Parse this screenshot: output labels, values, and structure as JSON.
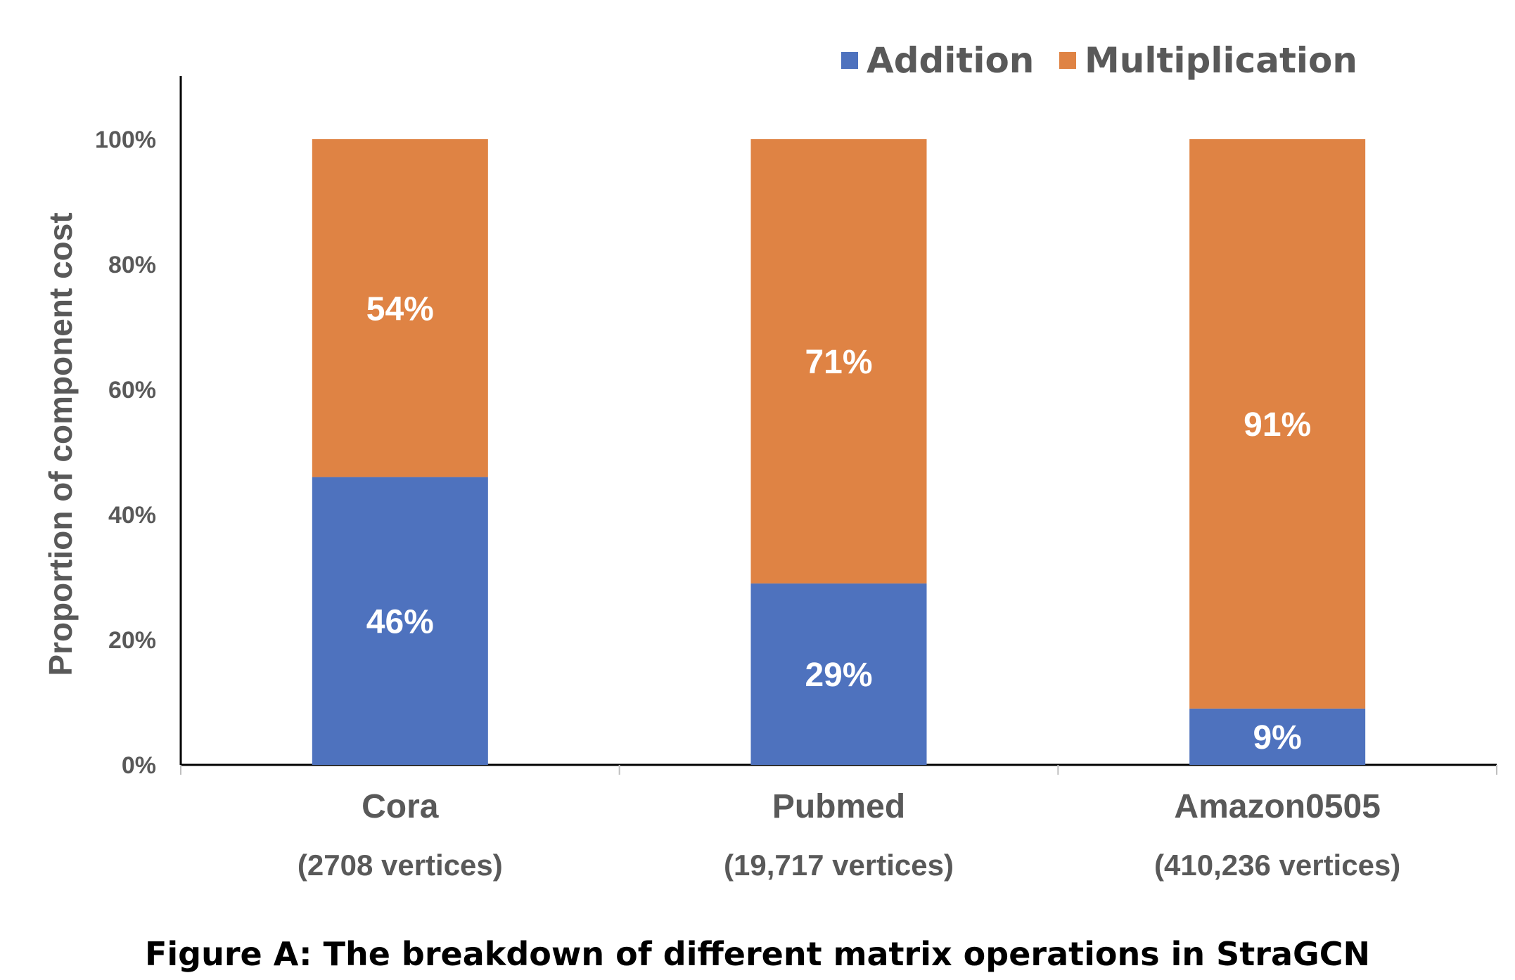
{
  "chart_data": {
    "type": "bar",
    "stacked": true,
    "categories": [
      "Cora",
      "Pubmed",
      "Amazon0505"
    ],
    "category_sublabels": [
      "(2708 vertices)",
      "(19,717 vertices)",
      "(410,236 vertices)"
    ],
    "series": [
      {
        "name": "Addition",
        "values": [
          46,
          29,
          9
        ],
        "labels": [
          "46%",
          "29%",
          "9%"
        ],
        "color": "#4E72BE"
      },
      {
        "name": "Multiplication",
        "values": [
          54,
          71,
          91
        ],
        "labels": [
          "54%",
          "71%",
          "91%"
        ],
        "color": "#DF8344"
      }
    ],
    "ylabel": "Proportion of component cost",
    "ylim": [
      0,
      100
    ],
    "yticks": [
      {
        "value": 0,
        "label": "0%"
      },
      {
        "value": 20,
        "label": "20%"
      },
      {
        "value": 40,
        "label": "40%"
      },
      {
        "value": 60,
        "label": "60%"
      },
      {
        "value": 80,
        "label": "80%"
      },
      {
        "value": 100,
        "label": "100%"
      }
    ],
    "grid": false,
    "legend_position": "top-right",
    "caption": "Figure A: The breakdown of different matrix operations in StraGCN"
  }
}
